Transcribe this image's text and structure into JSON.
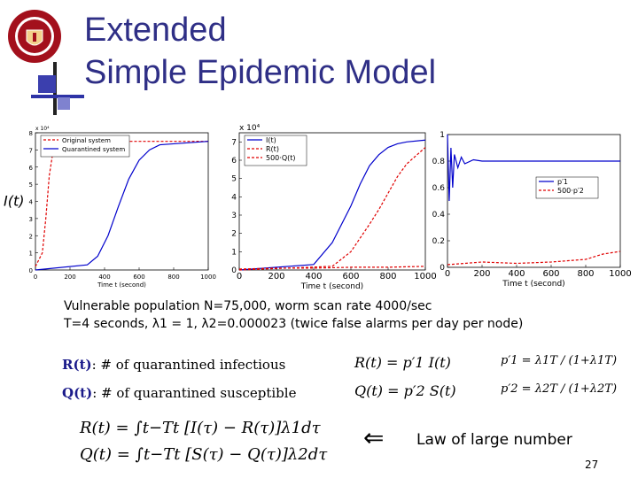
{
  "slide": {
    "title_line1": "Extended",
    "title_line2": "Simple Epidemic Model",
    "page_number": "27"
  },
  "params": {
    "line1": "Vulnerable population N=75,000,  worm scan rate 4000/sec",
    "line2": "T=4 seconds, λ1 = 1,  λ2=0.000023 (twice false alarms per day per node)"
  },
  "definitions": {
    "R_label": "R(t)",
    "R_text": ": # of quarantined infectious",
    "Q_label": "Q(t)",
    "Q_text": ": # of quarantined susceptible"
  },
  "equations": {
    "R_eq": "R(t) = p′1 I(t)",
    "Q_eq": "Q(t) = p′2 S(t)",
    "p1_eq": "p′1 = λ1T / (1+λ1T)",
    "p2_eq": "p′2 = λ2T / (1+λ2T)",
    "R_int": "R(t) = ∫t−Tt [I(τ) − R(τ)]λ1dτ",
    "Q_int": "Q(t) = ∫t−Tt [S(τ) − Q(τ)]λ2dτ"
  },
  "law": {
    "arrow": "⇐",
    "text": "Law of large number"
  },
  "chart_data": [
    {
      "type": "line",
      "ylabel": "I(t)",
      "xlabel": "Time t (second)",
      "y_exponent": "x 10⁴",
      "xlim": [
        0,
        1000
      ],
      "ylim": [
        0,
        8
      ],
      "x_ticks": [
        "0",
        "200",
        "400",
        "600",
        "800",
        "1000"
      ],
      "y_ticks": [
        "0",
        "1",
        "2",
        "3",
        "4",
        "5",
        "6",
        "7",
        "8"
      ],
      "legend": "top-left",
      "series": [
        {
          "name": "Original system",
          "color": "#e00000",
          "dashed": true,
          "x": [
            0,
            40,
            60,
            80,
            100,
            120,
            140,
            160,
            1000
          ],
          "y": [
            0.2,
            1.0,
            3.0,
            5.5,
            6.8,
            7.3,
            7.45,
            7.5,
            7.5
          ]
        },
        {
          "name": "Quarantined system",
          "color": "#0000cc",
          "dashed": false,
          "x": [
            0,
            300,
            360,
            420,
            480,
            540,
            600,
            660,
            720,
            1000
          ],
          "y": [
            0.0,
            0.3,
            0.8,
            2.0,
            3.7,
            5.3,
            6.4,
            7.0,
            7.3,
            7.5
          ]
        }
      ]
    },
    {
      "type": "line",
      "xlabel": "Time t (second)",
      "y_exponent": "x 10⁴",
      "xlim": [
        0,
        1000
      ],
      "ylim": [
        0,
        7.5
      ],
      "x_ticks": [
        "0",
        "200",
        "400",
        "600",
        "800",
        "1000"
      ],
      "y_ticks": [
        "0",
        "1",
        "2",
        "3",
        "4",
        "5",
        "6",
        "7"
      ],
      "legend": "top-left",
      "series": [
        {
          "name": "I(t)",
          "color": "#0000cc",
          "dashed": false,
          "x": [
            0,
            400,
            500,
            600,
            650,
            700,
            750,
            800,
            850,
            900,
            1000
          ],
          "y": [
            0,
            0.3,
            1.5,
            3.5,
            4.7,
            5.7,
            6.3,
            6.7,
            6.9,
            7.0,
            7.1
          ]
        },
        {
          "name": "R(t)",
          "color": "#e00000",
          "dashed": true,
          "x": [
            0,
            500,
            600,
            700,
            750,
            800,
            850,
            900,
            1000
          ],
          "y": [
            0,
            0.2,
            1.0,
            2.5,
            3.3,
            4.2,
            5.1,
            5.8,
            6.7
          ]
        },
        {
          "name": "500·Q(t)",
          "color": "#e00000",
          "dashed": true,
          "x": [
            0,
            200,
            400,
            600,
            800,
            1000
          ],
          "y": [
            0.05,
            0.1,
            0.1,
            0.15,
            0.15,
            0.2
          ]
        }
      ]
    },
    {
      "type": "line",
      "xlabel": "Time t (second)",
      "xlim": [
        0,
        1000
      ],
      "ylim": [
        0,
        1
      ],
      "x_ticks": [
        "0",
        "200",
        "400",
        "600",
        "800",
        "1000"
      ],
      "y_ticks": [
        "0",
        "0.2",
        "0.4",
        "0.6",
        "0.8",
        "1"
      ],
      "legend": "right",
      "series": [
        {
          "name": "p′1",
          "color": "#0000cc",
          "dashed": false,
          "x": [
            0,
            10,
            20,
            30,
            40,
            60,
            80,
            100,
            150,
            200,
            300,
            1000
          ],
          "y": [
            1.0,
            0.5,
            0.9,
            0.6,
            0.85,
            0.75,
            0.83,
            0.78,
            0.81,
            0.8,
            0.8,
            0.8
          ]
        },
        {
          "name": "500·p′2",
          "color": "#e00000",
          "dashed": true,
          "x": [
            0,
            100,
            200,
            400,
            600,
            800,
            900,
            1000
          ],
          "y": [
            0.02,
            0.03,
            0.04,
            0.03,
            0.04,
            0.06,
            0.1,
            0.12
          ]
        }
      ]
    }
  ]
}
